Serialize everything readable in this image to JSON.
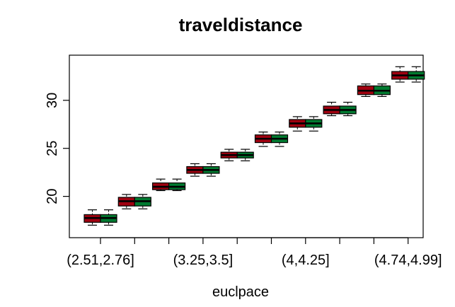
{
  "chart_data": {
    "type": "boxplot",
    "title": "traveldistance",
    "xlabel": "euclpace",
    "ylabel": "",
    "ylim": [
      15.7,
      34.7
    ],
    "yticks": [
      20,
      25,
      30
    ],
    "xtick_labels": [
      {
        "text": "(2.51,2.76]",
        "index": 0
      },
      {
        "text": "(3.25,3.5]",
        "index": 3
      },
      {
        "text": "(4,4.25]",
        "index": 6
      },
      {
        "text": "(4.74,4.99]",
        "index": 9
      }
    ],
    "series_colors": [
      "#a00010",
      "#007a30"
    ],
    "groups": [
      {
        "boxes": [
          {
            "whislo": 17.0,
            "q1": 17.3,
            "med": 17.75,
            "q3": 18.1,
            "whishi": 18.6
          },
          {
            "whislo": 17.0,
            "q1": 17.3,
            "med": 17.75,
            "q3": 18.1,
            "whishi": 18.6
          }
        ]
      },
      {
        "boxes": [
          {
            "whislo": 18.7,
            "q1": 19.0,
            "med": 19.5,
            "q3": 19.9,
            "whishi": 20.2
          },
          {
            "whislo": 18.7,
            "q1": 19.0,
            "med": 19.5,
            "q3": 19.9,
            "whishi": 20.2
          }
        ]
      },
      {
        "boxes": [
          {
            "whislo": 20.6,
            "q1": 20.7,
            "med": 21.0,
            "q3": 21.4,
            "whishi": 21.8
          },
          {
            "whislo": 20.6,
            "q1": 20.7,
            "med": 21.0,
            "q3": 21.4,
            "whishi": 21.8
          }
        ]
      },
      {
        "boxes": [
          {
            "whislo": 22.1,
            "q1": 22.4,
            "med": 22.75,
            "q3": 23.1,
            "whishi": 23.4
          },
          {
            "whislo": 22.1,
            "q1": 22.4,
            "med": 22.75,
            "q3": 23.1,
            "whishi": 23.4
          }
        ]
      },
      {
        "boxes": [
          {
            "whislo": 23.7,
            "q1": 24.0,
            "med": 24.3,
            "q3": 24.6,
            "whishi": 24.9
          },
          {
            "whislo": 23.7,
            "q1": 24.0,
            "med": 24.3,
            "q3": 24.6,
            "whishi": 24.9
          }
        ]
      },
      {
        "boxes": [
          {
            "whislo": 25.2,
            "q1": 25.6,
            "med": 26.0,
            "q3": 26.4,
            "whishi": 26.7
          },
          {
            "whislo": 25.2,
            "q1": 25.6,
            "med": 26.0,
            "q3": 26.4,
            "whishi": 26.7
          }
        ]
      },
      {
        "boxes": [
          {
            "whislo": 26.8,
            "q1": 27.2,
            "med": 27.6,
            "q3": 28.0,
            "whishi": 28.3
          },
          {
            "whislo": 26.8,
            "q1": 27.2,
            "med": 27.6,
            "q3": 28.0,
            "whishi": 28.3
          }
        ]
      },
      {
        "boxes": [
          {
            "whislo": 28.4,
            "q1": 28.6,
            "med": 29.0,
            "q3": 29.4,
            "whishi": 29.8
          },
          {
            "whislo": 28.4,
            "q1": 28.6,
            "med": 29.0,
            "q3": 29.4,
            "whishi": 29.8
          }
        ]
      },
      {
        "boxes": [
          {
            "whislo": 30.4,
            "q1": 30.6,
            "med": 31.0,
            "q3": 31.5,
            "whishi": 31.7
          },
          {
            "whislo": 30.4,
            "q1": 30.6,
            "med": 31.0,
            "q3": 31.5,
            "whishi": 31.7
          }
        ]
      },
      {
        "boxes": [
          {
            "whislo": 31.9,
            "q1": 32.2,
            "med": 32.6,
            "q3": 33.0,
            "whishi": 33.5
          },
          {
            "whislo": 31.9,
            "q1": 32.2,
            "med": 32.6,
            "q3": 33.0,
            "whishi": 33.5
          }
        ]
      }
    ]
  }
}
